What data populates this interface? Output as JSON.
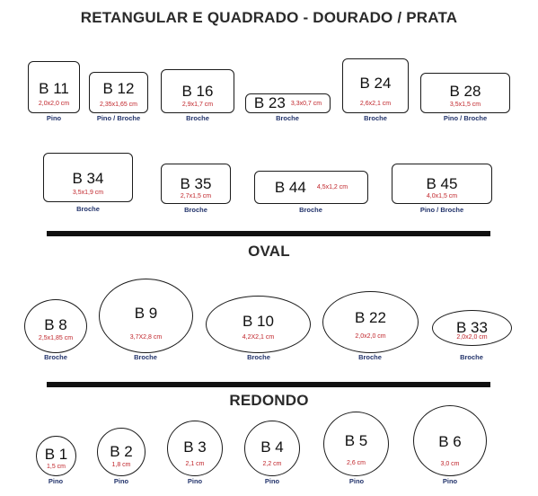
{
  "titles": {
    "main": "RETANGULAR E QUADRADO - DOURADO / PRATA",
    "oval": "OVAL",
    "round": "REDONDO"
  },
  "rect_items": [
    {
      "code": "B 11",
      "size": "2,0x2,0 cm",
      "type": "Pino"
    },
    {
      "code": "B 12",
      "size": "2,35x1,65 cm",
      "type": "Pino / Broche"
    },
    {
      "code": "B 16",
      "size": "2,9x1,7 cm",
      "type": "Broche"
    },
    {
      "code": "B 23",
      "size": "3,3x0,7 cm",
      "type": "Broche"
    },
    {
      "code": "B 24",
      "size": "2,6x2,1 cm",
      "type": "Broche"
    },
    {
      "code": "B 28",
      "size": "3,5x1,5 cm",
      "type": "Pino / Broche"
    },
    {
      "code": "B 34",
      "size": "3,5x1,9 cm",
      "type": "Broche"
    },
    {
      "code": "B 35",
      "size": "2,7x1,5 cm",
      "type": "Broche"
    },
    {
      "code": "B 44",
      "size": "4,5x1,2 cm",
      "type": "Broche"
    },
    {
      "code": "B 45",
      "size": "4,0x1,5 cm",
      "type": "Pino / Broche"
    }
  ],
  "oval_items": [
    {
      "code": "B 8",
      "size": "2,5x1,85 cm",
      "type": "Broche"
    },
    {
      "code": "B 9",
      "size": "3,7X2,8 cm",
      "type": "Broche"
    },
    {
      "code": "B 10",
      "size": "4,2X2,1 cm",
      "type": "Broche"
    },
    {
      "code": "B 22",
      "size": "2,0x2,0 cm",
      "type": "Broche"
    },
    {
      "code": "B 33",
      "size": "2,0x2,0 cm",
      "type": "Broche"
    }
  ],
  "round_items": [
    {
      "code": "B 1",
      "size": "1,5 cm",
      "type": "Pino"
    },
    {
      "code": "B 2",
      "size": "1,8 cm",
      "type": "Pino"
    },
    {
      "code": "B 3",
      "size": "2,1 cm",
      "type": "Pino"
    },
    {
      "code": "B 4",
      "size": "2,2 cm",
      "type": "Pino"
    },
    {
      "code": "B 5",
      "size": "2,6 cm",
      "type": "Pino"
    },
    {
      "code": "B 6",
      "size": "3,0 cm",
      "type": "Pino"
    }
  ],
  "colors": {
    "size_text": "#c0242a",
    "type_text": "#22336b",
    "outline": "#1b1b1b"
  }
}
